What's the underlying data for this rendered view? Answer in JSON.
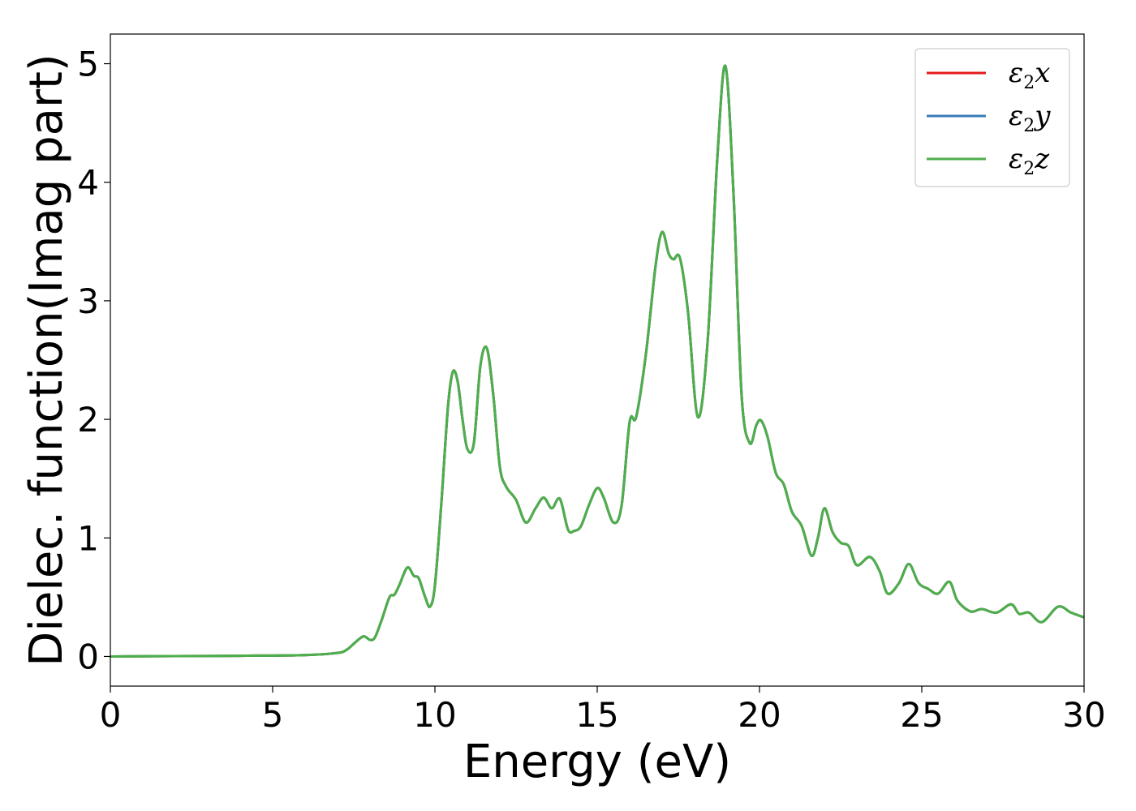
{
  "chart_data": {
    "type": "line",
    "xlabel": "Energy (eV)",
    "ylabel": "Dielec. function(Imag part)",
    "xlim": [
      0,
      30
    ],
    "ylim": [
      -0.25,
      5.25
    ],
    "xticks": [
      0,
      5,
      10,
      15,
      20,
      25,
      30
    ],
    "yticks": [
      0,
      1,
      2,
      3,
      4,
      5
    ],
    "xtick_labels": [
      "0",
      "5",
      "10",
      "15",
      "20",
      "25",
      "30"
    ],
    "ytick_labels": [
      "0",
      "1",
      "2",
      "3",
      "4",
      "5"
    ],
    "grid": false,
    "legend_position": "top-right",
    "series": [
      {
        "name": "ε2x",
        "legend_base": "ε",
        "legend_sub": "2",
        "legend_var": "x",
        "color": "#e41a1c"
      },
      {
        "name": "ε2y",
        "legend_base": "ε",
        "legend_sub": "2",
        "legend_var": "y",
        "color": "#377eb8"
      },
      {
        "name": "ε2z",
        "legend_base": "ε",
        "legend_sub": "2",
        "legend_var": "z",
        "color": "#4daf4a"
      }
    ],
    "x": [
      0,
      2,
      4,
      6,
      7.0,
      7.3,
      7.55,
      7.8,
      8.0,
      8.15,
      8.35,
      8.6,
      8.75,
      8.9,
      9.15,
      9.35,
      9.5,
      9.7,
      9.85,
      10.0,
      10.2,
      10.4,
      10.55,
      10.7,
      10.85,
      11.0,
      11.2,
      11.4,
      11.6,
      11.8,
      12.0,
      12.2,
      12.5,
      12.8,
      13.1,
      13.35,
      13.6,
      13.85,
      14.1,
      14.3,
      14.5,
      14.75,
      15.0,
      15.2,
      15.5,
      15.75,
      16.0,
      16.2,
      16.5,
      16.8,
      17.0,
      17.2,
      17.35,
      17.55,
      17.8,
      18.1,
      18.4,
      18.7,
      18.95,
      19.2,
      19.45,
      19.7,
      19.9,
      20.05,
      20.25,
      20.5,
      20.75,
      21.0,
      21.3,
      21.6,
      21.8,
      22.0,
      22.25,
      22.5,
      22.75,
      23.0,
      23.4,
      23.7,
      23.95,
      24.3,
      24.6,
      24.9,
      25.2,
      25.5,
      25.85,
      26.1,
      26.5,
      26.85,
      27.3,
      27.75,
      28.0,
      28.3,
      28.7,
      29.2,
      29.6,
      30.0
    ],
    "y_x": [
      0,
      0.003,
      0.006,
      0.012,
      0.03,
      0.06,
      0.12,
      0.17,
      0.14,
      0.16,
      0.3,
      0.5,
      0.52,
      0.6,
      0.75,
      0.68,
      0.66,
      0.5,
      0.42,
      0.6,
      1.3,
      2.1,
      2.4,
      2.32,
      2.0,
      1.75,
      1.8,
      2.45,
      2.6,
      2.2,
      1.6,
      1.43,
      1.32,
      1.13,
      1.25,
      1.34,
      1.25,
      1.33,
      1.07,
      1.06,
      1.1,
      1.28,
      1.42,
      1.34,
      1.13,
      1.27,
      1.98,
      2.02,
      2.55,
      3.3,
      3.58,
      3.4,
      3.35,
      3.36,
      2.9,
      2.02,
      2.65,
      4.2,
      4.98,
      3.9,
      2.2,
      1.8,
      1.95,
      1.99,
      1.85,
      1.55,
      1.45,
      1.22,
      1.1,
      0.85,
      1.0,
      1.25,
      1.05,
      0.96,
      0.93,
      0.77,
      0.84,
      0.72,
      0.53,
      0.62,
      0.78,
      0.62,
      0.57,
      0.53,
      0.63,
      0.47,
      0.38,
      0.4,
      0.37,
      0.44,
      0.36,
      0.37,
      0.29,
      0.42,
      0.37,
      0.33
    ]
  }
}
